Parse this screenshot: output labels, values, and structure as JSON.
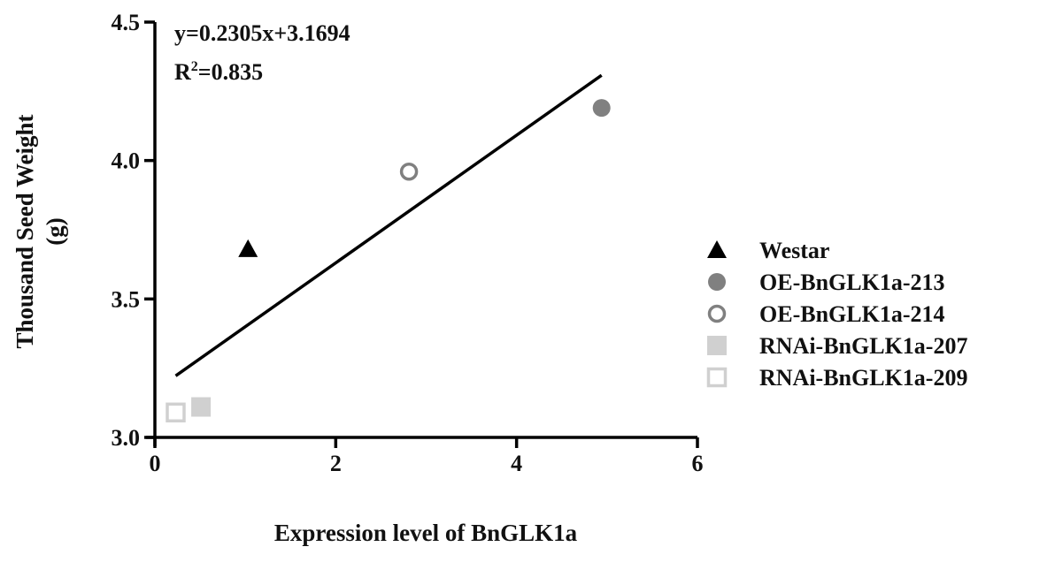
{
  "chart_data": {
    "type": "scatter",
    "title": "",
    "xlabel": "Expression level of BnGLK1a",
    "ylabel_line1": "Thousand Seed Weight",
    "ylabel_line2": "(g)",
    "xlim": [
      0,
      6
    ],
    "ylim": [
      3.0,
      4.5
    ],
    "xticks": [
      "0",
      "2",
      "4",
      "6"
    ],
    "yticks": [
      "3.0",
      "3.5",
      "4.0",
      "4.5"
    ],
    "grid": false,
    "legend_position": "right",
    "series": [
      {
        "name": "Westar",
        "marker": "triangle-filled",
        "color": "#000000",
        "x": 1.03,
        "y": 3.68
      },
      {
        "name": "OE-BnGLK1a-213",
        "marker": "circle-filled",
        "color": "#808080",
        "x": 4.94,
        "y": 4.19
      },
      {
        "name": "OE-BnGLK1a-214",
        "marker": "circle-open",
        "color": "#808080",
        "x": 2.81,
        "y": 3.96
      },
      {
        "name": "RNAi-BnGLK1a-207",
        "marker": "square-filled",
        "color": "#d0d0d0",
        "x": 0.51,
        "y": 3.11
      },
      {
        "name": "RNAi-BnGLK1a-209",
        "marker": "square-open",
        "color": "#d0d0d0",
        "x": 0.23,
        "y": 3.09
      }
    ],
    "regression": {
      "slope": 0.2305,
      "intercept": 3.1694,
      "x_range": [
        0.23,
        4.94
      ]
    },
    "annotations": {
      "equation": "y=0.2305x+3.1694",
      "r2_prefix": "R",
      "r2_sup": "2",
      "r2_value": "=0.835"
    }
  }
}
